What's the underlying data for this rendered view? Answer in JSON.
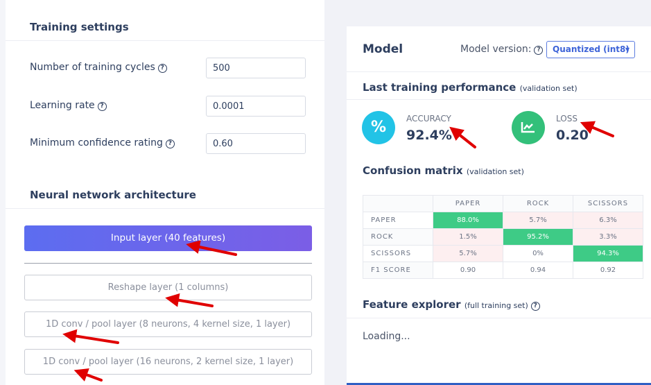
{
  "training_settings": {
    "title": "Training settings",
    "fields": [
      {
        "label": "Number of training cycles",
        "value": "500"
      },
      {
        "label": "Learning rate",
        "value": "0.0001"
      },
      {
        "label": "Minimum confidence rating",
        "value": "0.60"
      }
    ]
  },
  "architecture": {
    "title": "Neural network architecture",
    "layers": [
      "Input layer (40 features)",
      "Reshape layer (1 columns)",
      "1D conv / pool layer (8 neurons, 4 kernel size, 1 layer)",
      "1D conv / pool layer (16 neurons, 2 kernel size, 1 layer)"
    ]
  },
  "model": {
    "title": "Model",
    "version_label": "Model version:",
    "version": "Quantized (int8)",
    "performance": {
      "title": "Last training performance",
      "note": "(validation set)",
      "accuracy": {
        "icon": "%",
        "label": "ACCURACY",
        "value": "92.4%"
      },
      "loss": {
        "label": "LOSS",
        "value": "0.20"
      }
    },
    "confusion": {
      "title": "Confusion matrix",
      "note": "(validation set)",
      "columns": [
        "PAPER",
        "ROCK",
        "SCISSORS"
      ],
      "rows": [
        {
          "label": "PAPER",
          "cells": [
            "88.0%",
            "5.7%",
            "6.3%"
          ]
        },
        {
          "label": "ROCK",
          "cells": [
            "1.5%",
            "95.2%",
            "3.3%"
          ]
        },
        {
          "label": "SCISSORS",
          "cells": [
            "5.7%",
            "0%",
            "94.3%"
          ]
        }
      ],
      "f1": {
        "label": "F1 SCORE",
        "cells": [
          "0.90",
          "0.94",
          "0.92"
        ]
      }
    },
    "feature_explorer": {
      "title": "Feature explorer",
      "note": "(full training set)",
      "status": "Loading..."
    }
  }
}
